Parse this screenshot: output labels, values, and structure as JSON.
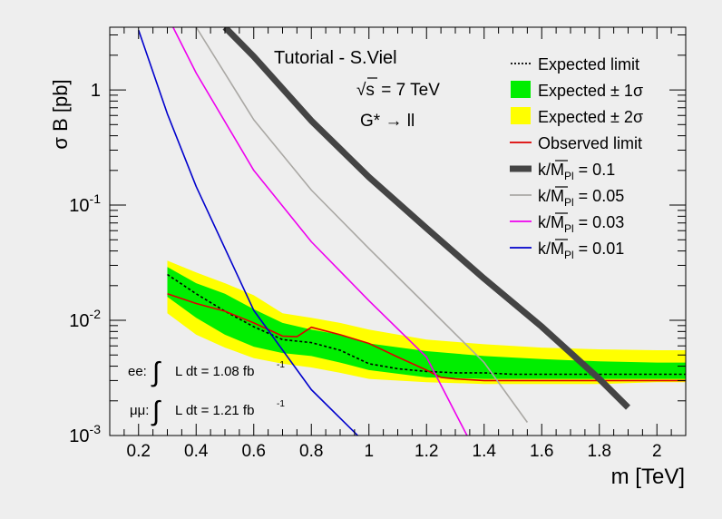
{
  "chart_data": {
    "type": "line",
    "title": "",
    "xlabel": "m [TeV]",
    "ylabel": "σ B [pb]",
    "xlim": [
      0.1,
      2.1
    ],
    "ylim": [
      0.001,
      3.5
    ],
    "yscale": "log",
    "grid": false,
    "legend_position": "top-right",
    "x_ticks": [
      0.2,
      0.4,
      0.6,
      0.8,
      1.0,
      1.2,
      1.4,
      1.6,
      1.8,
      2.0
    ],
    "x_tick_labels": [
      "0.2",
      "0.4",
      "0.6",
      "0.8",
      "1",
      "1.2",
      "1.4",
      "1.6",
      "1.8",
      "2"
    ],
    "y_ticks": [
      {
        "value": 1,
        "base": "1",
        "exp": ""
      },
      {
        "value": 0.1,
        "base": "10",
        "exp": "-1"
      },
      {
        "value": 0.01,
        "base": "10",
        "exp": "-2"
      },
      {
        "value": 0.001,
        "base": "10",
        "exp": "-3"
      }
    ],
    "annotations": {
      "author": "Tutorial - S.Viel",
      "energy_sqrt": "√s",
      "energy_rest": " = 7 TeV",
      "process": "G* → ll",
      "lumi_ee_prefix": "ee:",
      "lumi_ee_text": "L dt = 1.08 fb",
      "lumi_ee_exp": "-1",
      "lumi_mm_prefix": "μμ:",
      "lumi_mm_text": "L dt = 1.21 fb",
      "lumi_mm_exp": "-1"
    },
    "legend": [
      {
        "label": "Expected limit",
        "sub": "",
        "rest": "",
        "style": "dotted",
        "color": "#000000"
      },
      {
        "label": "Expected ± 1σ",
        "sub": "",
        "rest": "",
        "style": "box",
        "color": "#00ee00"
      },
      {
        "label": "Expected ± 2σ",
        "sub": "",
        "rest": "",
        "style": "box",
        "color": "#ffff00"
      },
      {
        "label": "Observed limit",
        "sub": "",
        "rest": "",
        "style": "line",
        "color": "#dd0000"
      },
      {
        "label": "k/M",
        "sub": "Pl",
        "rest": " = 0.1",
        "style": "thick",
        "color": "#444444"
      },
      {
        "label": "k/M",
        "sub": "Pl",
        "rest": " = 0.05",
        "style": "line",
        "color": "#aaa8a4"
      },
      {
        "label": "k/M",
        "sub": "Pl",
        "rest": " = 0.03",
        "style": "line",
        "color": "#ee00ee"
      },
      {
        "label": "k/M",
        "sub": "Pl",
        "rest": " = 0.01",
        "style": "line",
        "color": "#0000cc"
      }
    ],
    "band_2sigma": {
      "color": "#ffff00",
      "x": [
        0.3,
        0.4,
        0.5,
        0.6,
        0.7,
        0.8,
        0.9,
        1.0,
        1.2,
        1.4,
        1.6,
        1.8,
        2.0,
        2.1
      ],
      "low": [
        0.0115,
        0.0075,
        0.0058,
        0.0047,
        0.0042,
        0.0039,
        0.0035,
        0.0031,
        0.0029,
        0.0028,
        0.0028,
        0.0028,
        0.0029,
        0.0029
      ],
      "high": [
        0.033,
        0.026,
        0.021,
        0.0165,
        0.0115,
        0.0105,
        0.0095,
        0.0083,
        0.0068,
        0.0062,
        0.0058,
        0.0056,
        0.0055,
        0.0055
      ]
    },
    "band_1sigma": {
      "color": "#00ee00",
      "x": [
        0.3,
        0.4,
        0.5,
        0.6,
        0.7,
        0.8,
        0.9,
        1.0,
        1.2,
        1.4,
        1.6,
        1.8,
        2.0,
        2.1
      ],
      "low": [
        0.016,
        0.0105,
        0.0075,
        0.0059,
        0.0052,
        0.0049,
        0.0043,
        0.0037,
        0.0032,
        0.0031,
        0.0031,
        0.0031,
        0.0031,
        0.0031
      ],
      "high": [
        0.029,
        0.021,
        0.017,
        0.0125,
        0.0095,
        0.0083,
        0.0075,
        0.0063,
        0.0054,
        0.0049,
        0.0046,
        0.0044,
        0.0043,
        0.0043
      ]
    },
    "series": [
      {
        "name": "Expected limit",
        "color": "#000000",
        "width": 1.6,
        "dash": "3,2.5",
        "x": [
          0.3,
          0.4,
          0.5,
          0.6,
          0.7,
          0.8,
          0.9,
          1.0,
          1.1,
          1.2,
          1.3,
          1.4,
          1.5,
          1.6,
          1.7,
          1.8,
          2.0,
          2.1
        ],
        "y": [
          0.025,
          0.017,
          0.012,
          0.0088,
          0.0068,
          0.0064,
          0.0055,
          0.0042,
          0.0038,
          0.0036,
          0.0035,
          0.0035,
          0.0034,
          0.0034,
          0.0034,
          0.0034,
          0.0034,
          0.0034
        ]
      },
      {
        "name": "Observed limit",
        "color": "#dd0000",
        "width": 1.6,
        "dash": "",
        "x": [
          0.3,
          0.4,
          0.5,
          0.6,
          0.7,
          0.75,
          0.8,
          0.9,
          1.0,
          1.1,
          1.2,
          1.25,
          1.3,
          1.4,
          1.6,
          1.8,
          2.0,
          2.1
        ],
        "y": [
          0.017,
          0.014,
          0.012,
          0.0095,
          0.0073,
          0.0072,
          0.0087,
          0.0075,
          0.0063,
          0.0048,
          0.0037,
          0.0032,
          0.0031,
          0.003,
          0.003,
          0.003,
          0.003,
          0.003
        ]
      },
      {
        "name": "k/M_Pl = 0.1",
        "color": "#444444",
        "width": 7,
        "dash": "",
        "x": [
          0.5,
          0.6,
          0.8,
          1.0,
          1.2,
          1.4,
          1.6,
          1.8,
          1.9
        ],
        "y": [
          3.5,
          1.95,
          0.54,
          0.175,
          0.063,
          0.023,
          0.0088,
          0.0031,
          0.00175
        ]
      },
      {
        "name": "k/M_Pl = 0.05",
        "color": "#aaa8a4",
        "width": 1.6,
        "dash": "",
        "x": [
          0.4,
          0.6,
          0.8,
          1.0,
          1.2,
          1.4,
          1.55
        ],
        "y": [
          3.5,
          0.55,
          0.135,
          0.042,
          0.0135,
          0.0043,
          0.0013
        ]
      },
      {
        "name": "k/M_Pl = 0.03",
        "color": "#ee00ee",
        "width": 1.6,
        "dash": "",
        "x": [
          0.32,
          0.4,
          0.6,
          0.8,
          1.0,
          1.2,
          1.35
        ],
        "y": [
          3.5,
          1.4,
          0.2,
          0.048,
          0.0148,
          0.0048,
          0.0009
        ]
      },
      {
        "name": "k/M_Pl = 0.01",
        "color": "#0000cc",
        "width": 1.6,
        "dash": "",
        "x": [
          0.2,
          0.3,
          0.4,
          0.6,
          0.8,
          0.97
        ],
        "y": [
          3.3,
          0.62,
          0.145,
          0.0122,
          0.0025,
          0.00095
        ]
      }
    ]
  }
}
